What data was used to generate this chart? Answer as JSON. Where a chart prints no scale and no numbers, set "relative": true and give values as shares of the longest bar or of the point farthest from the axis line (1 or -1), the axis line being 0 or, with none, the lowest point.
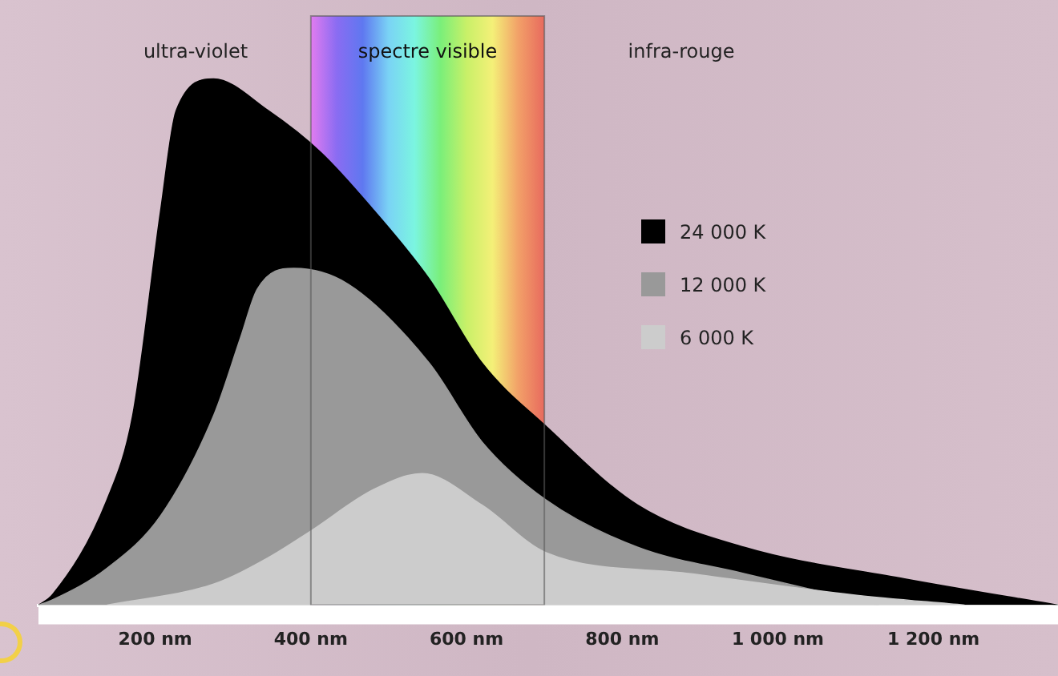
{
  "chart_data": {
    "type": "area",
    "relative": true,
    "legend": "top right",
    "grid": false,
    "xlim": [
      50,
      1360
    ],
    "xticks": [
      {
        "value": 200,
        "label": "200 nm"
      },
      {
        "value": 400,
        "label": "400 nm"
      },
      {
        "value": 600,
        "label": "600 nm"
      },
      {
        "value": 800,
        "label": "800 nm"
      },
      {
        "value": 1000,
        "label": "1 000 nm"
      },
      {
        "value": 1200,
        "label": "1 200 nm"
      }
    ],
    "bands": [
      {
        "axis": "x",
        "from": 400,
        "to": 700,
        "label": "spectre visible"
      }
    ],
    "annotations": [
      "ultra-violet",
      "infra-rouge"
    ],
    "series": [
      {
        "name": "24 000 K",
        "color": "#000000",
        "x": [
          50,
          68,
          138,
          171,
          207,
          227,
          275,
          345,
          413,
          481,
          552,
          620,
          702,
          820,
          957,
          1163,
          1360
        ],
        "values": [
          0,
          0.02,
          0.2,
          0.36,
          0.75,
          0.94,
          1,
          0.94,
          0.86,
          0.75,
          0.62,
          0.46,
          0.34,
          0.19,
          0.11,
          0.05,
          0
        ]
      },
      {
        "name": "12 000 K",
        "color": "#999999",
        "x": [
          50,
          68,
          138,
          207,
          275,
          310,
          331,
          378,
          448,
          552,
          620,
          702,
          820,
          957,
          1130
        ],
        "values": [
          0,
          0.01,
          0.07,
          0.17,
          0.36,
          0.51,
          0.6,
          0.64,
          0.61,
          0.46,
          0.31,
          0.2,
          0.11,
          0.06,
          0
        ]
      },
      {
        "name": "6 000 K",
        "color": "#cccccc",
        "x": [
          138,
          275,
          345,
          399,
          481,
          543,
          620,
          702,
          888,
          1095,
          1240
        ],
        "values": [
          0,
          0.04,
          0.09,
          0.14,
          0.22,
          0.25,
          0.19,
          0.1,
          0.06,
          0.02,
          0
        ]
      }
    ]
  }
}
